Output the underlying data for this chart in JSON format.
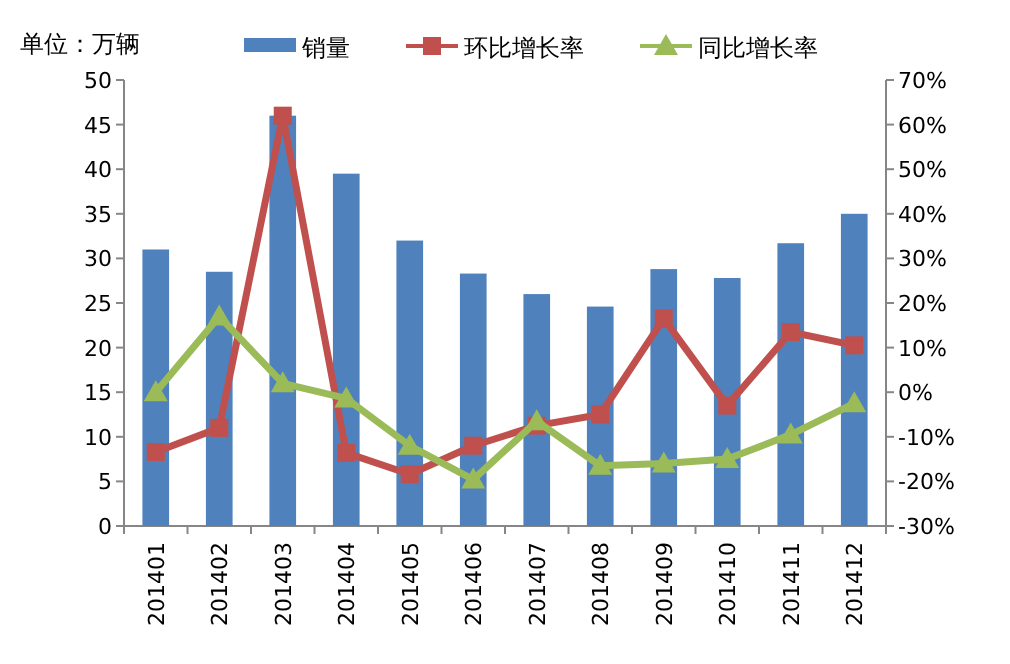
{
  "chart_data": {
    "type": "bar",
    "ylabel": "单位：万辆",
    "categories": [
      "201401",
      "201402",
      "201403",
      "201404",
      "201405",
      "201406",
      "201407",
      "201408",
      "201409",
      "201410",
      "201411",
      "201412"
    ],
    "series": [
      {
        "name": "销量",
        "color": "#4f81bd",
        "values": [
          31,
          28.5,
          46,
          39.5,
          32,
          28.3,
          26,
          24.6,
          28.8,
          27.8,
          31.7,
          35
        ]
      },
      {
        "name": "环比增长率",
        "type": "line",
        "axis": "y2",
        "marker": "square",
        "color": "#c0504d",
        "values": [
          -13.4,
          -8,
          62,
          -13.6,
          -18.4,
          -12,
          -7.5,
          -5,
          16.5,
          -3,
          13.5,
          10.5
        ]
      },
      {
        "name": "同比增长率",
        "type": "line",
        "axis": "y2",
        "marker": "triangle",
        "color": "#9bbb59",
        "values": [
          0,
          17,
          2,
          -1.4,
          -12,
          -19.6,
          -6.5,
          -16.5,
          -16,
          -15,
          -9.5,
          -2.5
        ]
      }
    ],
    "ylim": [
      0,
      50
    ],
    "yticks": [
      0,
      5,
      10,
      15,
      20,
      25,
      30,
      35,
      40,
      45,
      50
    ],
    "y2lim": [
      -30,
      70
    ],
    "y2ticks": [
      {
        "value": -30,
        "label": "-30%"
      },
      {
        "value": -20,
        "label": "-20%"
      },
      {
        "value": -10,
        "label": "-10%"
      },
      {
        "value": 0,
        "label": "0%"
      },
      {
        "value": 10,
        "label": "10%"
      },
      {
        "value": 20,
        "label": "20%"
      },
      {
        "value": 30,
        "label": "30%"
      },
      {
        "value": 40,
        "label": "40%"
      },
      {
        "value": 50,
        "label": "50%"
      },
      {
        "value": 60,
        "label": "60%"
      },
      {
        "value": 70,
        "label": "70%"
      }
    ],
    "legend": "top",
    "grid": false
  }
}
